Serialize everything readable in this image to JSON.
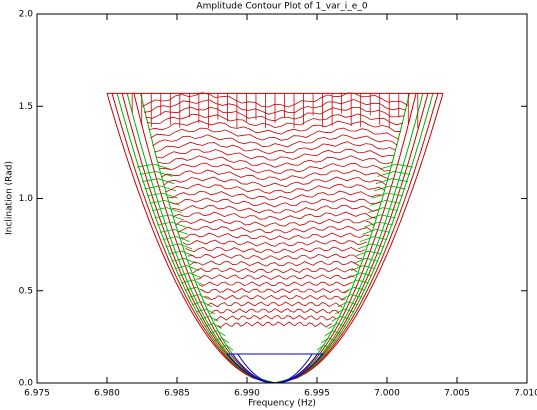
{
  "chart_data": {
    "type": "contour",
    "title": "Amplitude Contour Plot of 1_var_i_e_0",
    "x_label": "Frequency (Hz)",
    "y_label": "Inclination (Rad)",
    "xlim": [
      6.975,
      7.01
    ],
    "xticks": [
      6.975,
      {
        "value": 6.98,
        "label": "6.980"
      },
      6.985,
      {
        "value": 6.99,
        "label": "6.990"
      },
      6.995,
      {
        "value": 7.0,
        "label": "7.000"
      },
      7.005,
      {
        "value": 7.01,
        "label": "7.010"
      }
    ],
    "ylim": [
      0,
      2
    ],
    "yticks": [
      {
        "value": 0,
        "label": "0.0"
      },
      0.5,
      {
        "value": 1,
        "label": "1.0"
      },
      1.5,
      {
        "value": 2,
        "label": "2.0"
      }
    ],
    "contour_extent": {
      "x": [
        6.98,
        7.004
      ],
      "apex_x": 6.992,
      "y_top": 1.57
    },
    "colors": [
      "#cc0000",
      "#00b000",
      "#0000c8"
    ]
  }
}
